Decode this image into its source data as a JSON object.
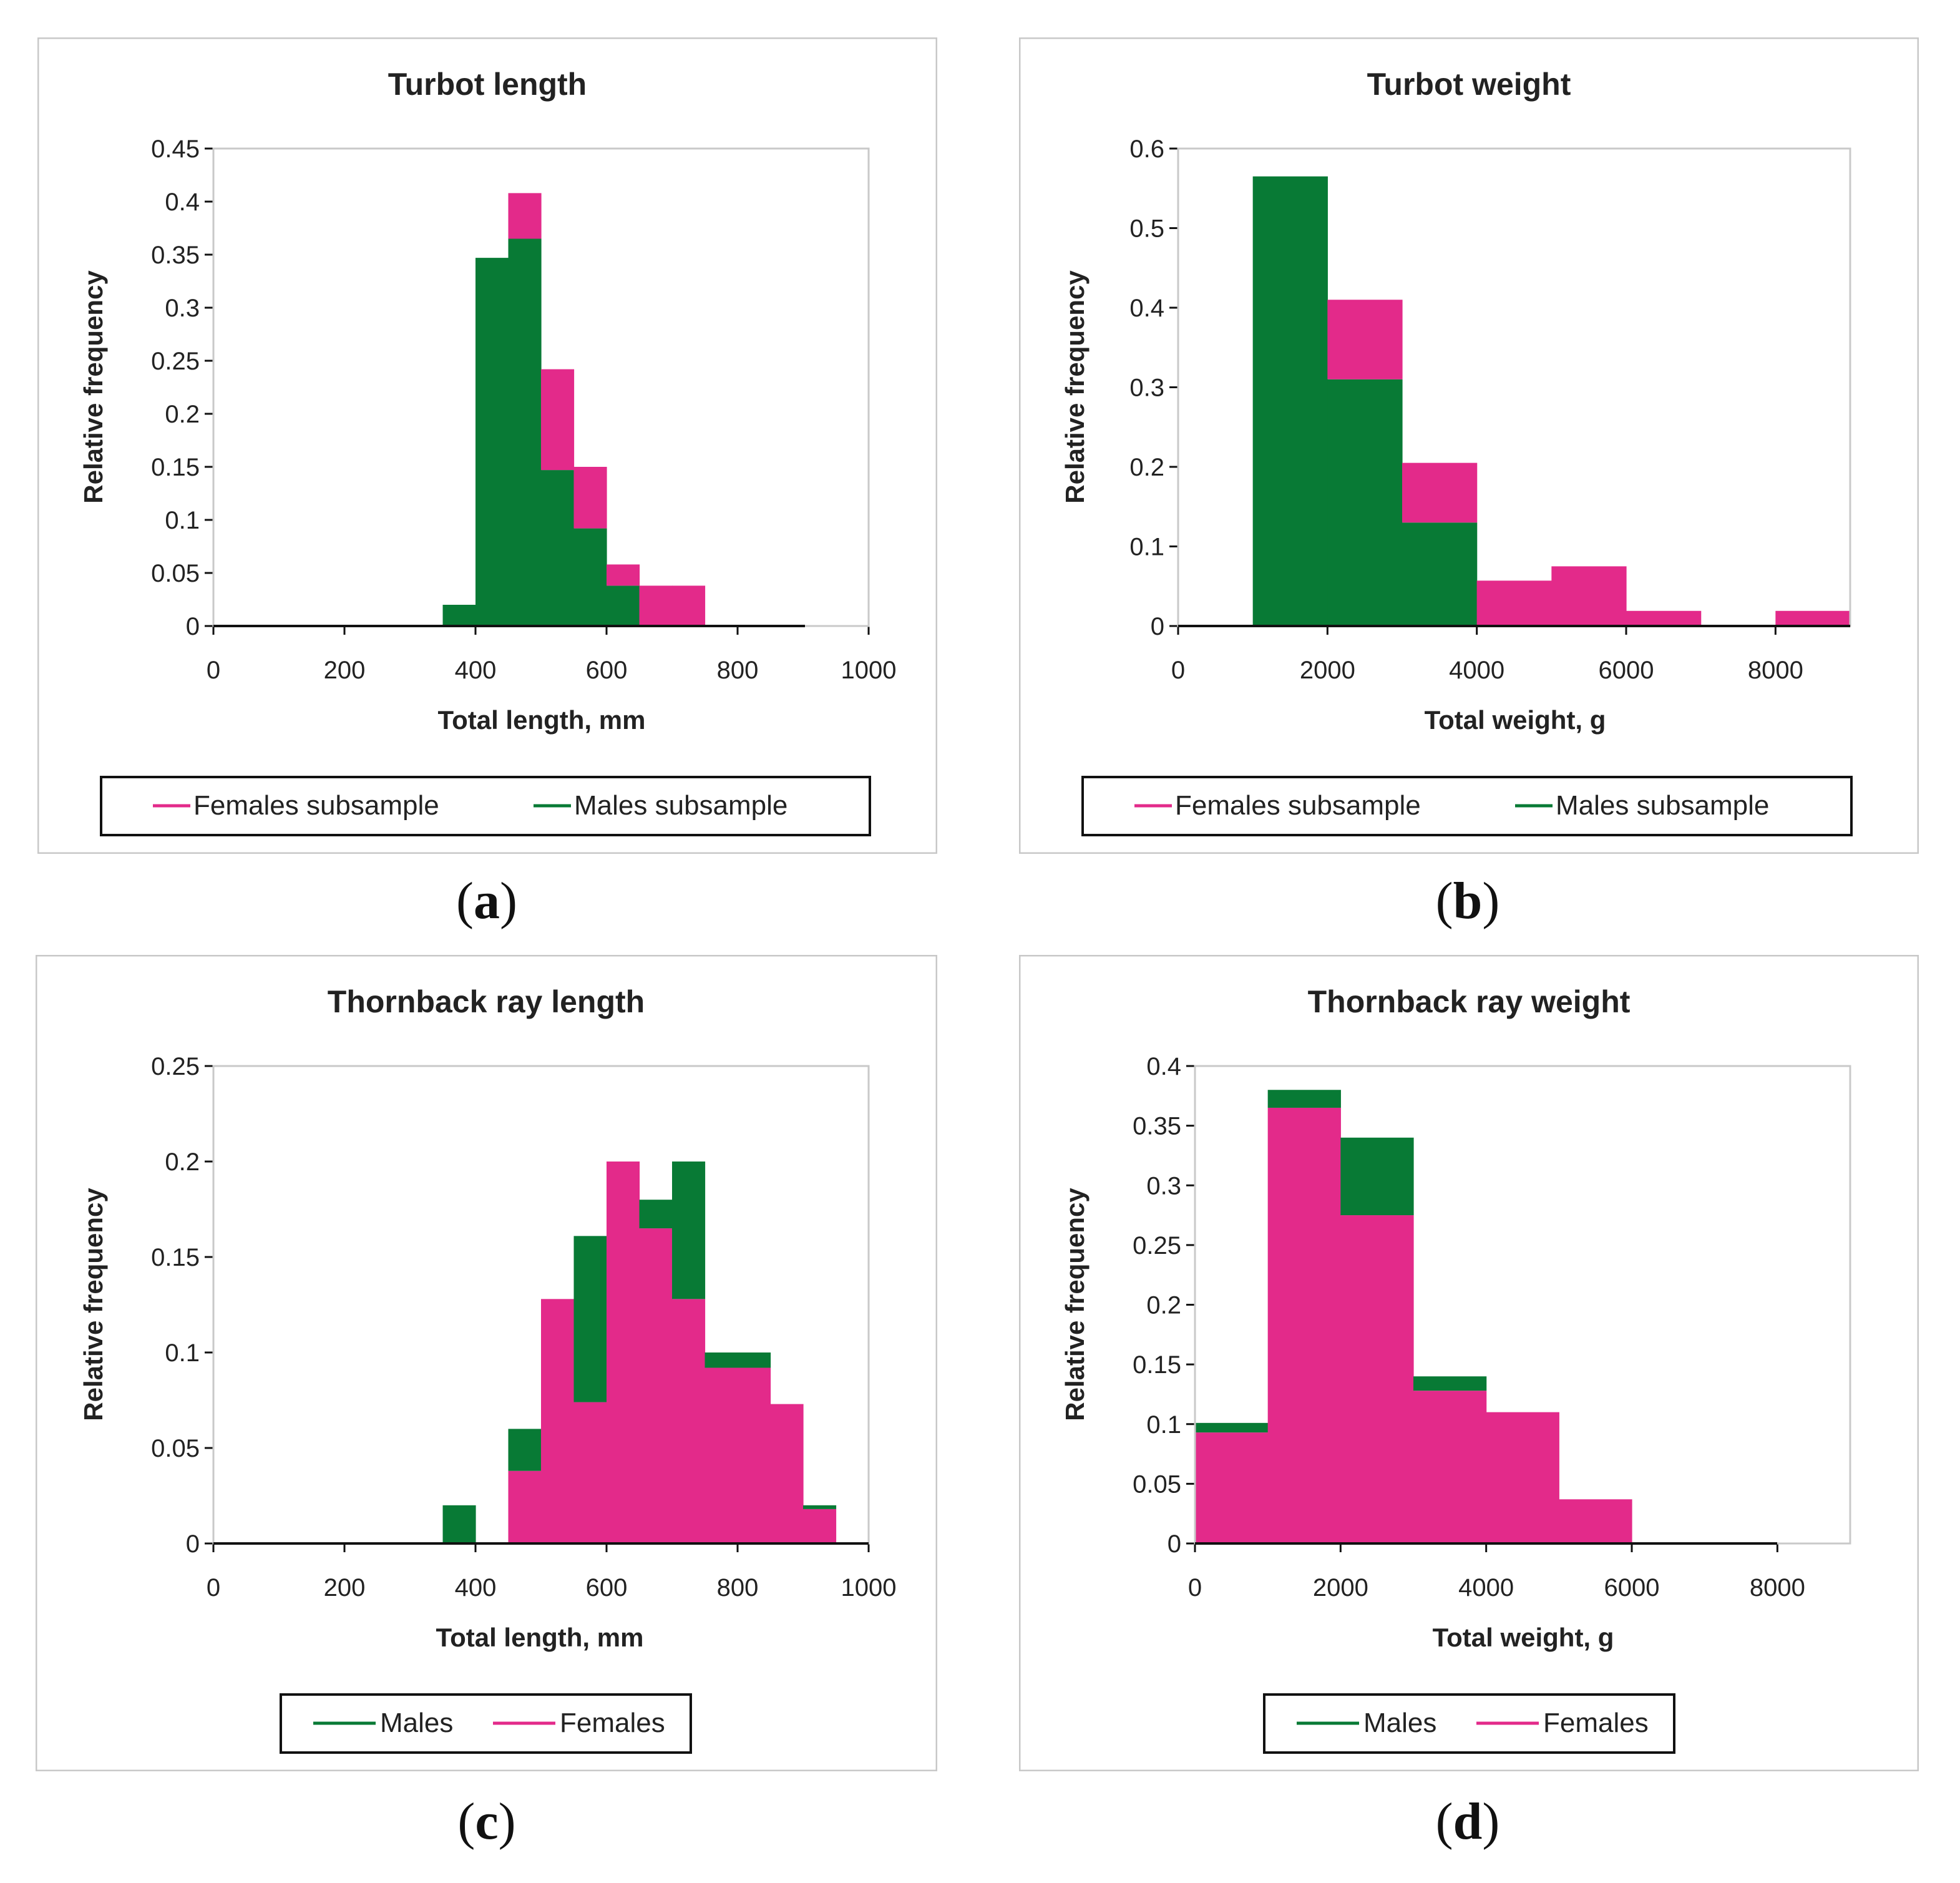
{
  "colors": {
    "female": "#e32a8a",
    "male": "#087a35",
    "axis": "#111111",
    "grid": "#c9c9c9",
    "frame": "#c8c8c8"
  },
  "chart_data": [
    {
      "type": "bar",
      "stacked": true,
      "title": "Turbot length",
      "xlabel": "Total length, mm",
      "ylabel": "Relative frequency",
      "xlim": [
        0,
        1000
      ],
      "ylim": [
        0,
        0.45
      ],
      "xticks": [
        0,
        200,
        400,
        600,
        800,
        1000
      ],
      "xtick_labels": [
        "0",
        "200",
        "400",
        "600",
        "800",
        "1000"
      ],
      "yticks": [
        0,
        0.05,
        0.1,
        0.15,
        0.2,
        0.25,
        0.3,
        0.35,
        0.4,
        0.45
      ],
      "ytick_labels": [
        "0",
        "0.05",
        "0.1",
        "0.15",
        "0.2",
        "0.25",
        "0.3",
        "0.35",
        "0.4",
        "0.45"
      ],
      "bin_edges": [
        0,
        50,
        100,
        150,
        200,
        250,
        300,
        350,
        400,
        450,
        500,
        550,
        600,
        650,
        700,
        750,
        800,
        850,
        900
      ],
      "series": [
        {
          "name": "Males subsample",
          "key": "male",
          "values": [
            0,
            0,
            0,
            0,
            0,
            0,
            0,
            0.02,
            0.347,
            0.365,
            0.147,
            0.092,
            0.038,
            0,
            0,
            0,
            0,
            0
          ]
        },
        {
          "name": "Females subsample",
          "key": "female",
          "values": [
            0,
            0,
            0,
            0,
            0,
            0,
            0,
            0,
            0,
            0.043,
            0.095,
            0.058,
            0.02,
            0.038,
            0.038,
            0,
            0,
            0
          ]
        }
      ],
      "legend": [
        {
          "label": "Females subsample",
          "key": "female"
        },
        {
          "label": "Males subsample",
          "key": "male"
        }
      ],
      "legend_position": "bottom",
      "caption": "a"
    },
    {
      "type": "bar",
      "stacked": true,
      "title": "Turbot weight",
      "xlabel": "Total weight, g",
      "ylabel": "Relative frequency",
      "xlim": [
        0,
        9000
      ],
      "ylim": [
        0,
        0.6
      ],
      "xticks": [
        0,
        2000,
        4000,
        6000,
        8000
      ],
      "xtick_labels": [
        "0",
        "2000",
        "4000",
        "6000",
        "8000"
      ],
      "yticks": [
        0,
        0.1,
        0.2,
        0.3,
        0.4,
        0.5,
        0.6
      ],
      "ytick_labels": [
        "0",
        "0.1",
        "0.2",
        "0.3",
        "0.4",
        "0.5",
        "0.6"
      ],
      "bin_edges": [
        0,
        1000,
        2000,
        3000,
        4000,
        5000,
        6000,
        7000,
        8000,
        9000
      ],
      "series": [
        {
          "name": "Males subsample",
          "key": "male",
          "values": [
            0,
            0.565,
            0.31,
            0.13,
            0,
            0,
            0,
            0,
            0
          ]
        },
        {
          "name": "Females subsample",
          "key": "female",
          "values": [
            0,
            0,
            0.1,
            0.075,
            0.057,
            0.075,
            0.019,
            0,
            0.019
          ]
        }
      ],
      "legend": [
        {
          "label": "Females subsample",
          "key": "female"
        },
        {
          "label": "Males subsample",
          "key": "male"
        }
      ],
      "legend_position": "bottom",
      "caption": "b"
    },
    {
      "type": "bar",
      "stacked": true,
      "title": "Thornback ray length",
      "xlabel": "Total length, mm",
      "ylabel": "Relative frequency",
      "xlim": [
        0,
        1000
      ],
      "ylim": [
        0,
        0.25
      ],
      "xticks": [
        0,
        200,
        400,
        600,
        800,
        1000
      ],
      "xtick_labels": [
        "0",
        "200",
        "400",
        "600",
        "800",
        "1000"
      ],
      "yticks": [
        0,
        0.05,
        0.1,
        0.15,
        0.2,
        0.25
      ],
      "ytick_labels": [
        "0",
        "0.05",
        "0.1",
        "0.15",
        "0.2",
        "0.25"
      ],
      "bin_edges": [
        0,
        50,
        100,
        150,
        200,
        250,
        300,
        350,
        400,
        450,
        500,
        550,
        600,
        650,
        700,
        750,
        800,
        850,
        900,
        950
      ],
      "series": [
        {
          "name": "Females",
          "key": "female",
          "values": [
            0,
            0,
            0,
            0,
            0,
            0,
            0,
            0,
            0,
            0.038,
            0.128,
            0.074,
            0.2,
            0.165,
            0.128,
            0.092,
            0.092,
            0.073,
            0.018
          ]
        },
        {
          "name": "Males",
          "key": "male",
          "values": [
            0,
            0,
            0,
            0,
            0,
            0,
            0,
            0.02,
            0,
            0.022,
            0,
            0.087,
            0,
            0.015,
            0.072,
            0.008,
            0.008,
            0,
            0.002
          ]
        }
      ],
      "legend": [
        {
          "label": "Males",
          "key": "male"
        },
        {
          "label": "Females",
          "key": "female"
        }
      ],
      "legend_position": "bottom",
      "caption": "c"
    },
    {
      "type": "bar",
      "stacked": true,
      "title": "Thornback ray weight",
      "xlabel": "Total weight, g",
      "ylabel": "Relative frequency",
      "xlim": [
        0,
        9000
      ],
      "ylim": [
        0,
        0.4
      ],
      "xticks": [
        0,
        2000,
        4000,
        6000,
        8000
      ],
      "xtick_labels": [
        "0",
        "2000",
        "4000",
        "6000",
        "8000"
      ],
      "yticks": [
        0,
        0.05,
        0.1,
        0.15,
        0.2,
        0.25,
        0.3,
        0.35,
        0.4
      ],
      "ytick_labels": [
        "0",
        "0.05",
        "0.1",
        "0.15",
        "0.2",
        "0.25",
        "0.3",
        "0.35",
        "0.4"
      ],
      "bin_edges": [
        0,
        1000,
        2000,
        3000,
        4000,
        5000,
        6000,
        7000,
        8000
      ],
      "series": [
        {
          "name": "Females",
          "key": "female",
          "values": [
            0.093,
            0.365,
            0.275,
            0.128,
            0.11,
            0.037,
            0,
            0
          ]
        },
        {
          "name": "Males",
          "key": "male",
          "values": [
            0.008,
            0.015,
            0.065,
            0.012,
            0,
            0,
            0,
            0
          ]
        }
      ],
      "legend": [
        {
          "label": "Males",
          "key": "male"
        },
        {
          "label": "Females",
          "key": "female"
        }
      ],
      "legend_position": "bottom",
      "caption": "d"
    }
  ]
}
